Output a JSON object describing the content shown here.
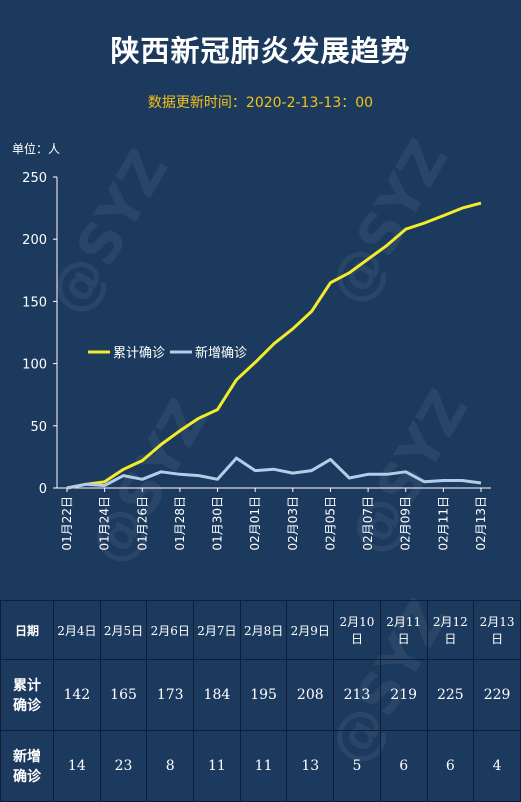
{
  "title": "陕西新冠肺炎发展趋势",
  "subtitle": "数据更新时间：2020-2-13-13：00",
  "unit_label": "单位：人",
  "watermark": "@SYZ",
  "colors": {
    "background": "#1c3a5e",
    "cumulative": "#f2ec2b",
    "new": "#b3cde8",
    "subtitle": "#f2c21a"
  },
  "chart_data": {
    "type": "line",
    "x": [
      "01月22日",
      "01月23日",
      "01月24日",
      "01月25日",
      "01月26日",
      "01月27日",
      "01月28日",
      "01月29日",
      "01月30日",
      "01月31日",
      "02月01日",
      "02月02日",
      "02月03日",
      "02月04日",
      "02月05日",
      "02月06日",
      "02月07日",
      "02月08日",
      "02月09日",
      "02月10日",
      "02月11日",
      "02月12日",
      "02月13日"
    ],
    "x_tick_labels": [
      "01月22日",
      "01月24日",
      "01月26日",
      "01月28日",
      "01月30日",
      "02月01日",
      "02月03日",
      "02月05日",
      "02月07日",
      "02月09日",
      "02月11日",
      "02月13日"
    ],
    "series": [
      {
        "name": "累计确诊",
        "values": [
          0,
          3,
          5,
          15,
          22,
          35,
          46,
          56,
          63,
          87,
          101,
          116,
          128,
          142,
          165,
          173,
          184,
          195,
          208,
          213,
          219,
          225,
          229
        ]
      },
      {
        "name": "新增确诊",
        "values": [
          0,
          3,
          2,
          10,
          7,
          13,
          11,
          10,
          7,
          24,
          14,
          15,
          12,
          14,
          23,
          8,
          11,
          11,
          13,
          5,
          6,
          6,
          4
        ]
      }
    ],
    "ylim": [
      0,
      250
    ],
    "yticks": [
      0,
      50,
      100,
      150,
      200,
      250
    ],
    "grid": false,
    "legend": "middle-left"
  },
  "table": {
    "header_label": "日期",
    "dates": [
      "2月4日",
      "2月5日",
      "2月6日",
      "2月7日",
      "2月8日",
      "2月9日",
      "2月10日",
      "2月11日",
      "2月12日",
      "2月13日"
    ],
    "rows": [
      {
        "label_line1": "累计",
        "label_line2": "确诊",
        "values": [
          "142",
          "165",
          "173",
          "184",
          "195",
          "208",
          "213",
          "219",
          "225",
          "229"
        ]
      },
      {
        "label_line1": "新增",
        "label_line2": "确诊",
        "values": [
          "14",
          "23",
          "8",
          "11",
          "11",
          "13",
          "5",
          "6",
          "6",
          "4"
        ]
      }
    ]
  }
}
